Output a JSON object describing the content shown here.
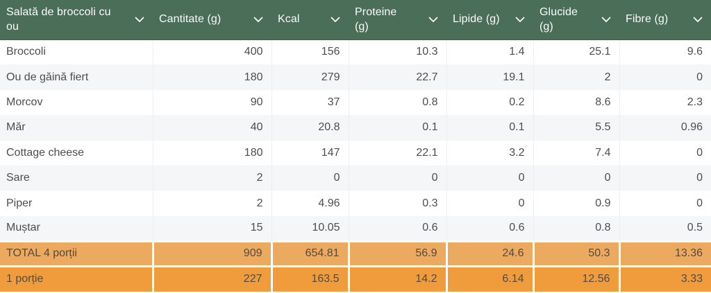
{
  "table": {
    "title": "Salată de broccoli cu ou",
    "columns": [
      {
        "label": "Salată de broccoli cu ou"
      },
      {
        "label": "Cantitate (g)"
      },
      {
        "label": "Kcal"
      },
      {
        "label": "Proteine (g)"
      },
      {
        "label": "Lipide (g)"
      },
      {
        "label": "Glucide (g)"
      },
      {
        "label": "Fibre (g)"
      }
    ],
    "rows": [
      {
        "name": "Broccoli",
        "values": [
          "400",
          "156",
          "10.3",
          "1.4",
          "25.1",
          "9.6"
        ]
      },
      {
        "name": "Ou de găină fiert",
        "values": [
          "180",
          "279",
          "22.7",
          "19.1",
          "2",
          "0"
        ]
      },
      {
        "name": "Morcov",
        "values": [
          "90",
          "37",
          "0.8",
          "0.2",
          "8.6",
          "2.3"
        ]
      },
      {
        "name": "Măr",
        "values": [
          "40",
          "20.8",
          "0.1",
          "0.1",
          "5.5",
          "0.96"
        ]
      },
      {
        "name": "Cottage cheese",
        "values": [
          "180",
          "147",
          "22.1",
          "3.2",
          "7.4",
          "0"
        ]
      },
      {
        "name": "Sare",
        "values": [
          "2",
          "0",
          "0",
          "0",
          "0",
          "0"
        ]
      },
      {
        "name": "Piper",
        "values": [
          "2",
          "4.96",
          "0.3",
          "0",
          "0.9",
          "0"
        ]
      },
      {
        "name": "Muștar",
        "values": [
          "15",
          "10.05",
          "0.6",
          "0.6",
          "0.8",
          "0.5"
        ]
      }
    ],
    "summary_rows": [
      {
        "name": "TOTAL 4 porții",
        "type": "total",
        "values": [
          "909",
          "654.81",
          "56.9",
          "24.6",
          "50.3",
          "13.36"
        ]
      },
      {
        "name": "1 porție",
        "type": "portion",
        "values": [
          "227",
          "163.5",
          "14.2",
          "6.14",
          "12.56",
          "3.33"
        ]
      }
    ],
    "icons": {
      "header_dropdown": "chevron-down-icon"
    },
    "colors": {
      "header_bg": "#4b6e58",
      "header_text": "#fbfcfb",
      "row_alt_bg": "#f4f6f7",
      "row_text": "#4d4d4d",
      "total_row_bg": "#ecaa61",
      "portion_row_bg": "#f09c3c"
    }
  },
  "chart_data": {
    "type": "table",
    "title": "Salată de broccoli cu ou",
    "columns": [
      "Salată de broccoli cu ou",
      "Cantitate (g)",
      "Kcal",
      "Proteine (g)",
      "Lipide (g)",
      "Glucide (g)",
      "Fibre (g)"
    ],
    "rows": [
      [
        "Broccoli",
        400,
        156,
        10.3,
        1.4,
        25.1,
        9.6
      ],
      [
        "Ou de găină fiert",
        180,
        279,
        22.7,
        19.1,
        2,
        0
      ],
      [
        "Morcov",
        90,
        37,
        0.8,
        0.2,
        8.6,
        2.3
      ],
      [
        "Măr",
        40,
        20.8,
        0.1,
        0.1,
        5.5,
        0.96
      ],
      [
        "Cottage cheese",
        180,
        147,
        22.1,
        3.2,
        7.4,
        0
      ],
      [
        "Sare",
        2,
        0,
        0,
        0,
        0,
        0
      ],
      [
        "Piper",
        2,
        4.96,
        0.3,
        0,
        0.9,
        0
      ],
      [
        "Muștar",
        15,
        10.05,
        0.6,
        0.6,
        0.8,
        0.5
      ],
      [
        "TOTAL 4 porții",
        909,
        654.81,
        56.9,
        24.6,
        50.3,
        13.36
      ],
      [
        "1 porție",
        227,
        163.5,
        14.2,
        6.14,
        12.56,
        3.33
      ]
    ]
  }
}
